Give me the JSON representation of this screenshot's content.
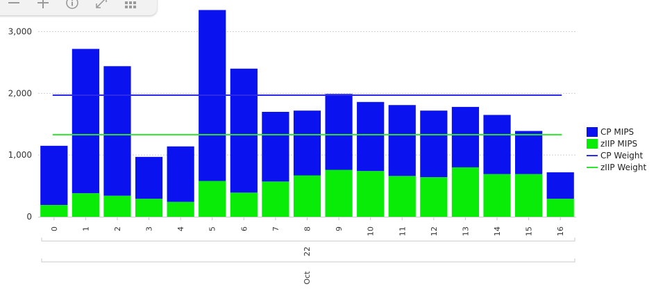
{
  "toolbar": {
    "buttons": [
      {
        "icon": "zoom-out-icon",
        "name": "zoom-out-button"
      },
      {
        "icon": "zoom-in-icon",
        "name": "zoom-in-button"
      },
      {
        "icon": "info-icon",
        "name": "info-button"
      },
      {
        "icon": "expand-icon",
        "name": "expand-button"
      },
      {
        "icon": "grid-icon",
        "name": "table-view-button"
      }
    ]
  },
  "colors": {
    "cp": "#0a12f0",
    "ziip": "#08ec08",
    "cp_weight": "#2a2ae8",
    "ziip_weight": "#2ee62e",
    "grid": "#cfcfcf"
  },
  "chart_data": {
    "type": "bar",
    "stacked": true,
    "categories": [
      "0",
      "1",
      "2",
      "3",
      "4",
      "5",
      "6",
      "7",
      "8",
      "9",
      "10",
      "11",
      "12",
      "13",
      "14",
      "15",
      "16"
    ],
    "x_group_labels": [
      "22",
      "Oct"
    ],
    "series": [
      {
        "name": "CP MIPS",
        "type": "bar",
        "values": [
          960,
          2340,
          2100,
          680,
          900,
          2770,
          2010,
          1130,
          1050,
          1230,
          1120,
          1150,
          1080,
          980,
          960,
          700,
          430
        ]
      },
      {
        "name": "zIIP MIPS",
        "type": "bar",
        "values": [
          190,
          380,
          340,
          290,
          240,
          580,
          390,
          570,
          670,
          760,
          740,
          660,
          640,
          800,
          690,
          690,
          290
        ]
      },
      {
        "name": "CP Weight",
        "type": "line",
        "value": 1970
      },
      {
        "name": "zIIP Weight",
        "type": "line",
        "value": 1330
      }
    ],
    "ylim": [
      0,
      3400
    ],
    "yticks": [
      0,
      1000,
      2000,
      3000
    ],
    "ytick_labels": [
      "0",
      "1,000",
      "2,000",
      "3,000"
    ],
    "grid": true,
    "legend_position": "right"
  }
}
